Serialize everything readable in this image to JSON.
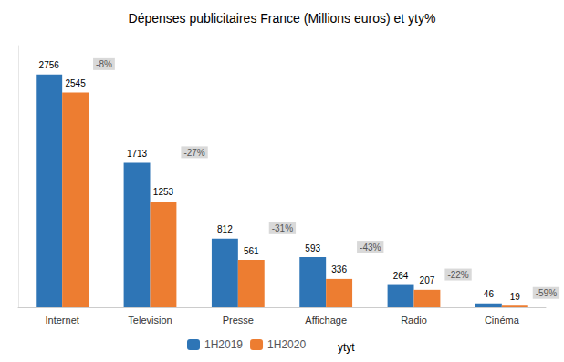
{
  "chart_data": {
    "type": "bar",
    "title": "Dépenses publicitaires France (Millions euros) et yty%",
    "categories": [
      "Internet",
      "Television",
      "Presse",
      "Affichage",
      "Radio",
      "Cinéma"
    ],
    "series": [
      {
        "name": "1H2019",
        "color": "#2E75B6",
        "values": [
          2756,
          1713,
          812,
          593,
          264,
          46
        ]
      },
      {
        "name": "1H2020",
        "color": "#ED7D31",
        "values": [
          2545,
          1253,
          561,
          336,
          207,
          19
        ]
      }
    ],
    "annotations": {
      "name": "ytyt",
      "color": "#D9D9D9",
      "texts": [
        "-8%",
        "-27%",
        "-31%",
        "-43%",
        "-22%",
        "-59%"
      ]
    },
    "ylim": [
      0,
      3100
    ],
    "grid": false,
    "legend": "bottom",
    "data_labels": true,
    "tick_labels": "x"
  }
}
